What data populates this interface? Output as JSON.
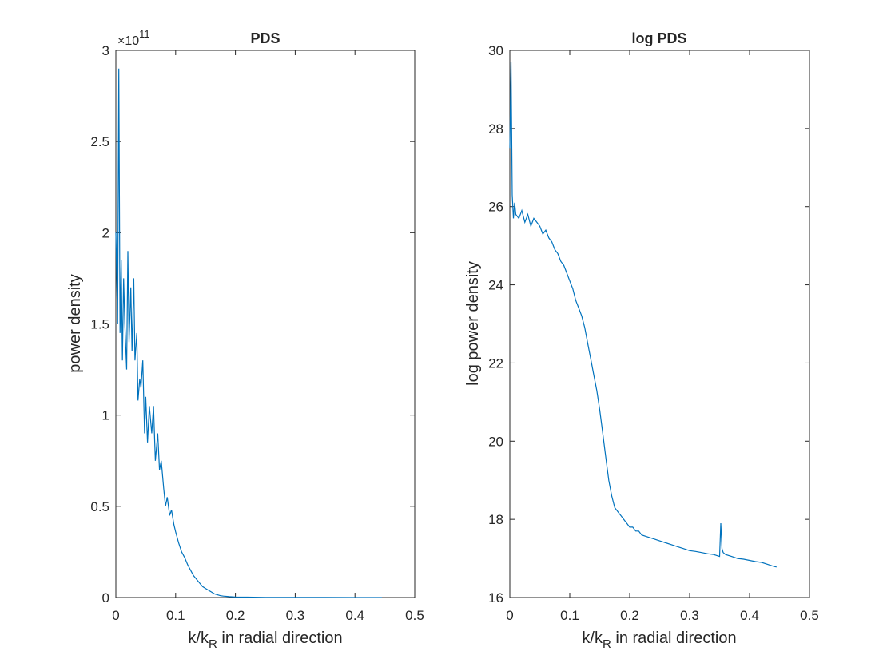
{
  "chart_data": [
    {
      "type": "line",
      "title": "PDS",
      "xlabel": "k/k",
      "xlabel_sub": "R",
      "xlabel_rest": " in radial direction",
      "ylabel": "power density",
      "xlim": [
        0,
        0.5
      ],
      "ylim": [
        0,
        3
      ],
      "y_multiplier_base": "×10",
      "y_multiplier_exp": "11",
      "x_ticks": [
        0,
        0.1,
        0.2,
        0.3,
        0.4,
        0.5
      ],
      "x_tick_labels": [
        "0",
        "0.1",
        "0.2",
        "0.3",
        "0.4",
        "0.5"
      ],
      "y_ticks": [
        0,
        0.5,
        1,
        1.5,
        2,
        2.5,
        3
      ],
      "y_tick_labels": [
        "0",
        "0.5",
        "1",
        "1.5",
        "2",
        "2.5",
        "3"
      ],
      "grid": false,
      "color": "#0072BD",
      "series": [
        {
          "x": [
            0.0,
            0.003,
            0.005,
            0.007,
            0.009,
            0.011,
            0.013,
            0.015,
            0.018,
            0.02,
            0.022,
            0.025,
            0.027,
            0.03,
            0.032,
            0.035,
            0.037,
            0.04,
            0.042,
            0.045,
            0.048,
            0.05,
            0.053,
            0.056,
            0.06,
            0.063,
            0.066,
            0.07,
            0.073,
            0.076,
            0.08,
            0.083,
            0.086,
            0.09,
            0.093,
            0.097,
            0.1,
            0.105,
            0.11,
            0.115,
            0.12,
            0.125,
            0.13,
            0.135,
            0.14,
            0.145,
            0.15,
            0.155,
            0.16,
            0.165,
            0.17,
            0.175,
            0.18,
            0.19,
            0.2,
            0.22,
            0.25,
            0.3,
            0.35,
            0.4,
            0.445
          ],
          "y": [
            2.0,
            1.5,
            2.9,
            1.45,
            1.85,
            1.3,
            1.75,
            1.5,
            1.25,
            1.9,
            1.4,
            1.7,
            1.35,
            1.75,
            1.3,
            1.45,
            1.08,
            1.2,
            1.15,
            1.3,
            0.9,
            1.1,
            0.85,
            1.05,
            0.9,
            1.05,
            0.75,
            0.9,
            0.7,
            0.75,
            0.6,
            0.5,
            0.55,
            0.45,
            0.48,
            0.4,
            0.36,
            0.3,
            0.25,
            0.22,
            0.18,
            0.15,
            0.12,
            0.1,
            0.08,
            0.06,
            0.05,
            0.04,
            0.03,
            0.02,
            0.015,
            0.01,
            0.008,
            0.005,
            0.003,
            0.002,
            0.001,
            0.0005,
            0.0003,
            0.0002,
            0.0001
          ]
        }
      ]
    },
    {
      "type": "line",
      "title": "log PDS",
      "xlabel": "k/k",
      "xlabel_sub": "R",
      "xlabel_rest": " in radial direction",
      "ylabel": "log power density",
      "xlim": [
        0,
        0.5
      ],
      "ylim": [
        16,
        30
      ],
      "x_ticks": [
        0,
        0.1,
        0.2,
        0.3,
        0.4,
        0.5
      ],
      "x_tick_labels": [
        "0",
        "0.1",
        "0.2",
        "0.3",
        "0.4",
        "0.5"
      ],
      "y_ticks": [
        16,
        18,
        20,
        22,
        24,
        26,
        28,
        30
      ],
      "y_tick_labels": [
        "16",
        "18",
        "20",
        "22",
        "24",
        "26",
        "28",
        "30"
      ],
      "grid": false,
      "color": "#0072BD",
      "series": [
        {
          "x": [
            0.0,
            0.002,
            0.004,
            0.006,
            0.008,
            0.01,
            0.015,
            0.02,
            0.025,
            0.03,
            0.035,
            0.04,
            0.045,
            0.05,
            0.055,
            0.06,
            0.065,
            0.07,
            0.075,
            0.08,
            0.085,
            0.09,
            0.095,
            0.1,
            0.105,
            0.11,
            0.115,
            0.12,
            0.125,
            0.13,
            0.135,
            0.14,
            0.145,
            0.15,
            0.155,
            0.16,
            0.165,
            0.17,
            0.175,
            0.18,
            0.185,
            0.19,
            0.195,
            0.2,
            0.205,
            0.21,
            0.215,
            0.22,
            0.23,
            0.24,
            0.25,
            0.26,
            0.27,
            0.28,
            0.29,
            0.3,
            0.31,
            0.32,
            0.33,
            0.34,
            0.35,
            0.352,
            0.354,
            0.356,
            0.36,
            0.37,
            0.38,
            0.39,
            0.4,
            0.41,
            0.42,
            0.43,
            0.44,
            0.445
          ],
          "y": [
            27.5,
            29.7,
            26.3,
            25.7,
            26.1,
            25.8,
            25.7,
            25.9,
            25.6,
            25.8,
            25.5,
            25.7,
            25.6,
            25.5,
            25.3,
            25.4,
            25.2,
            25.1,
            24.9,
            24.8,
            24.6,
            24.5,
            24.3,
            24.1,
            23.9,
            23.6,
            23.4,
            23.2,
            22.9,
            22.5,
            22.1,
            21.7,
            21.3,
            20.8,
            20.2,
            19.6,
            19.0,
            18.6,
            18.3,
            18.2,
            18.1,
            18.0,
            17.9,
            17.8,
            17.8,
            17.7,
            17.7,
            17.6,
            17.55,
            17.5,
            17.45,
            17.4,
            17.35,
            17.3,
            17.25,
            17.2,
            17.18,
            17.15,
            17.12,
            17.1,
            17.05,
            17.9,
            17.25,
            17.15,
            17.1,
            17.05,
            17.0,
            16.98,
            16.95,
            16.92,
            16.9,
            16.85,
            16.8,
            16.78
          ]
        }
      ]
    }
  ]
}
